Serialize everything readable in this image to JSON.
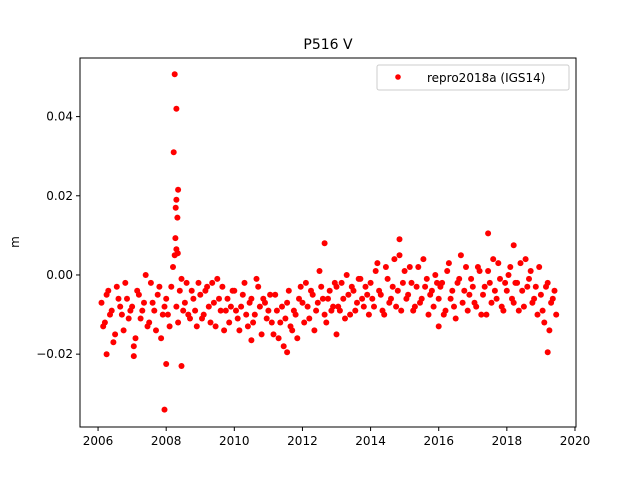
{
  "chart_data": {
    "type": "scatter",
    "title": "P516 V",
    "xlabel": "",
    "ylabel": "m",
    "xlim": [
      2005.47,
      2020.03
    ],
    "ylim": [
      -0.0384,
      0.0548
    ],
    "xticks": [
      2006,
      2008,
      2010,
      2012,
      2014,
      2016,
      2018,
      2020
    ],
    "xtick_labels": [
      "2006",
      "2008",
      "2010",
      "2012",
      "2014",
      "2016",
      "2018",
      "2020"
    ],
    "yticks": [
      -0.02,
      0.0,
      0.02,
      0.04
    ],
    "ytick_labels": [
      "−0.02",
      "0.00",
      "0.02",
      "0.04"
    ],
    "grid": false,
    "legend": {
      "placement": "top-right",
      "entries": [
        "repro2018a (IGS14)"
      ]
    },
    "series": [
      {
        "name": "repro2018a (IGS14)",
        "color": "#ff0000",
        "marker": "circle",
        "regular_samples": [
          {
            "x_start": 2006.1,
            "x_step": 0.1,
            "y": [
              -0.007,
              -0.012,
              -0.004,
              -0.009,
              -0.015,
              -0.006,
              -0.01,
              -0.002,
              -0.011,
              -0.008,
              -0.016,
              -0.005,
              -0.009,
              0.0,
              -0.012,
              -0.007,
              -0.014,
              -0.003,
              -0.01,
              -0.006,
              -0.013,
              0.002,
              -0.008,
              -0.004,
              -0.009,
              -0.002,
              -0.011,
              -0.006,
              -0.013,
              -0.005,
              -0.01,
              -0.003,
              -0.012,
              -0.007,
              -0.001,
              -0.009,
              -0.014,
              -0.006,
              -0.008,
              -0.004,
              -0.011,
              -0.008,
              -0.002,
              -0.013,
              -0.006,
              -0.01,
              -0.003,
              -0.015,
              -0.007,
              -0.009,
              -0.012,
              -0.005,
              -0.016,
              -0.008,
              -0.011,
              -0.004,
              -0.014,
              -0.01,
              -0.006,
              -0.007,
              -0.002,
              -0.011,
              -0.005,
              -0.009,
              0.001,
              -0.006,
              -0.012,
              -0.004,
              -0.008,
              -0.003,
              -0.009,
              -0.006,
              0.0,
              -0.01,
              -0.004,
              -0.007,
              -0.001,
              -0.008,
              -0.005,
              -0.002,
              -0.008,
              0.003,
              -0.005,
              -0.01,
              -0.001,
              -0.006,
              0.004,
              -0.004,
              -0.009,
              0.001,
              -0.005,
              -0.002,
              -0.008,
              0.002,
              -0.006,
              -0.003,
              -0.01,
              -0.004,
              0.0,
              -0.006,
              -0.002,
              -0.009,
              0.003,
              -0.004,
              -0.011,
              -0.001,
              -0.007,
              0.002,
              -0.005,
              -0.003,
              -0.008,
              0.001,
              -0.005,
              -0.01,
              -0.002,
              0.004,
              -0.006,
              -0.001,
              -0.009,
              -0.004,
              0.002,
              -0.007,
              -0.002,
              0.003,
              -0.008,
              -0.003,
              0.001,
              -0.006,
              -0.01,
              -0.005,
              -0.012,
              -0.002,
              -0.007,
              -0.004
            ]
          },
          {
            "x_start": 2006.15,
            "x_step": 0.1,
            "y": [
              -0.013,
              -0.005,
              -0.01,
              -0.017,
              -0.003,
              -0.008,
              -0.014,
              -0.006,
              -0.009,
              -0.018,
              -0.004,
              -0.011,
              -0.007,
              -0.013,
              -0.002,
              -0.009,
              -0.005,
              -0.016,
              -0.008,
              -0.01,
              -0.003,
              0.005,
              -0.012,
              -0.001,
              -0.007,
              -0.01,
              -0.004,
              -0.009,
              -0.002,
              -0.011,
              -0.004,
              -0.008,
              -0.002,
              -0.013,
              -0.006,
              -0.003,
              -0.009,
              -0.012,
              -0.004,
              -0.009,
              -0.014,
              -0.005,
              -0.01,
              -0.007,
              -0.012,
              -0.001,
              -0.008,
              -0.006,
              -0.011,
              -0.005,
              -0.015,
              -0.009,
              -0.012,
              -0.018,
              -0.007,
              -0.013,
              -0.009,
              -0.016,
              -0.003,
              -0.012,
              -0.008,
              -0.004,
              -0.014,
              -0.007,
              -0.003,
              -0.01,
              -0.006,
              -0.009,
              -0.002,
              -0.008,
              -0.002,
              -0.011,
              -0.005,
              -0.003,
              -0.009,
              -0.001,
              -0.006,
              -0.003,
              -0.01,
              -0.006,
              0.001,
              -0.004,
              -0.009,
              0.002,
              -0.007,
              -0.003,
              -0.008,
              0.005,
              -0.002,
              -0.006,
              0.002,
              -0.009,
              -0.003,
              -0.007,
              0.004,
              -0.001,
              -0.005,
              -0.008,
              -0.002,
              -0.003,
              -0.01,
              0.001,
              -0.006,
              -0.008,
              -0.002,
              0.005,
              -0.004,
              -0.009,
              -0.001,
              -0.007,
              0.002,
              -0.01,
              -0.003,
              0.001,
              -0.007,
              -0.004,
              0.003,
              -0.008,
              -0.002,
              0.0,
              -0.006,
              -0.002,
              -0.009,
              -0.004,
              0.004,
              -0.001,
              -0.007,
              -0.003,
              0.002,
              -0.009,
              -0.003,
              -0.014,
              -0.006,
              -0.01
            ]
          }
        ],
        "points": [
          [
            2008.25,
            0.0507
          ],
          [
            2008.3,
            0.042
          ],
          [
            2008.22,
            0.031
          ],
          [
            2008.35,
            0.0215
          ],
          [
            2008.3,
            0.019
          ],
          [
            2008.28,
            0.017
          ],
          [
            2008.33,
            0.0145
          ],
          [
            2008.27,
            0.0093
          ],
          [
            2008.3,
            0.0065
          ],
          [
            2008.34,
            0.0055
          ],
          [
            2007.95,
            -0.034
          ],
          [
            2008.0,
            -0.0225
          ],
          [
            2008.45,
            -0.023
          ],
          [
            2006.25,
            -0.02
          ],
          [
            2007.05,
            -0.0205
          ],
          [
            2017.45,
            0.0105
          ],
          [
            2019.2,
            -0.0195
          ],
          [
            2012.65,
            0.008
          ],
          [
            2014.85,
            0.009
          ],
          [
            2011.55,
            -0.0195
          ],
          [
            2010.5,
            -0.0165
          ],
          [
            2013.0,
            -0.015
          ],
          [
            2016.0,
            -0.013
          ],
          [
            2018.2,
            0.0075
          ]
        ]
      }
    ]
  }
}
